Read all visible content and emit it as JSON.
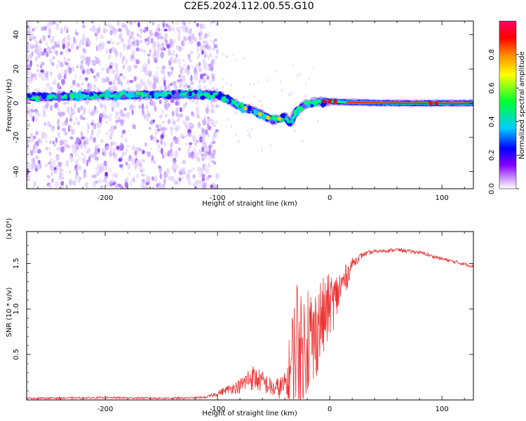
{
  "title": "C2E5.2024.112.00.55.G10",
  "colors": {
    "snr_line": "#ee3333",
    "background": "#ffffff",
    "axis": "#000000"
  },
  "chart_data": [
    {
      "type": "heatmap",
      "title": "C2E5.2024.112.00.55.G10",
      "xlabel": "Height of straight line (km)",
      "ylabel": "Frequency (Hz)",
      "xlim": [
        -270,
        128
      ],
      "ylim": [
        -50,
        48
      ],
      "x_ticks": [
        -200,
        -100,
        0,
        100
      ],
      "x_tick_labels": [
        "-200",
        "-100",
        "0",
        "100"
      ],
      "y_ticks": [
        -40,
        -20,
        0,
        20,
        40
      ],
      "y_tick_labels": [
        "-40",
        "-20",
        "0",
        "20",
        "40"
      ],
      "colorbar": {
        "label": "Normalized spectral amplitude",
        "range": [
          0,
          1
        ],
        "ticks": [
          0.0,
          0.2,
          0.4,
          0.6,
          0.8
        ],
        "tick_labels": [
          "0.0",
          "0.2",
          "0.4",
          "0.6",
          "0.8"
        ],
        "colormap": [
          "#ffffff",
          "#8800ff",
          "#0000ff",
          "#00ccff",
          "#00ff33",
          "#ffff00",
          "#ff8800",
          "#ff0000",
          "#ff0066"
        ]
      },
      "signal_track": [
        {
          "x": -270,
          "y": 3.5
        },
        {
          "x": -200,
          "y": 4.5
        },
        {
          "x": -150,
          "y": 5
        },
        {
          "x": -115,
          "y": 5
        },
        {
          "x": -100,
          "y": 5
        },
        {
          "x": -90,
          "y": 2
        },
        {
          "x": -80,
          "y": -2
        },
        {
          "x": -70,
          "y": -4
        },
        {
          "x": -60,
          "y": -7
        },
        {
          "x": -50,
          "y": -10
        },
        {
          "x": -40,
          "y": -8
        },
        {
          "x": -35,
          "y": -12
        },
        {
          "x": -30,
          "y": -5
        },
        {
          "x": -20,
          "y": 0
        },
        {
          "x": -10,
          "y": 1
        },
        {
          "x": 0,
          "y": 1
        },
        {
          "x": 20,
          "y": 0.5
        },
        {
          "x": 60,
          "y": 0
        },
        {
          "x": 128,
          "y": 0
        }
      ],
      "noise_region_xmax": -110
    },
    {
      "type": "line",
      "xlabel": "Height of straight line (km)",
      "ylabel": "SNR (10 * v/v)",
      "y_multiplier": "(x10⁴)",
      "xlim": [
        -270,
        128
      ],
      "ylim": [
        0,
        1.85
      ],
      "x_ticks": [
        -200,
        -100,
        0,
        100
      ],
      "x_tick_labels": [
        "-200",
        "-100",
        "0",
        "100"
      ],
      "y_ticks": [
        0.5,
        1.0,
        1.5
      ],
      "y_tick_labels": [
        "0.5",
        "1.0",
        "1.5"
      ],
      "series": [
        {
          "x": [
            -270,
            -250,
            -200,
            -150,
            -130,
            -110,
            -100,
            -90,
            -80,
            -70,
            -60,
            -50,
            -40,
            -35,
            -30,
            -25,
            -20,
            -15,
            -10,
            -5,
            0,
            5,
            10,
            15,
            20,
            30,
            40,
            60,
            80,
            100,
            128
          ],
          "values": [
            0.02,
            0.02,
            0.025,
            0.02,
            0.02,
            0.03,
            0.07,
            0.12,
            0.15,
            0.25,
            0.2,
            0.12,
            0.15,
            0.3,
            0.7,
            0.5,
            0.75,
            0.6,
            0.85,
            0.9,
            1.05,
            1.1,
            1.25,
            1.35,
            1.5,
            1.6,
            1.63,
            1.65,
            1.62,
            1.55,
            1.47
          ],
          "noise_amplitude": [
            0.01,
            0.01,
            0.01,
            0.01,
            0.01,
            0.01,
            0.03,
            0.05,
            0.08,
            0.15,
            0.12,
            0.1,
            0.15,
            0.5,
            0.8,
            0.6,
            0.7,
            0.6,
            0.5,
            0.45,
            0.35,
            0.3,
            0.2,
            0.15,
            0.06,
            0.03,
            0.02,
            0.02,
            0.02,
            0.02,
            0.02
          ]
        }
      ]
    }
  ]
}
